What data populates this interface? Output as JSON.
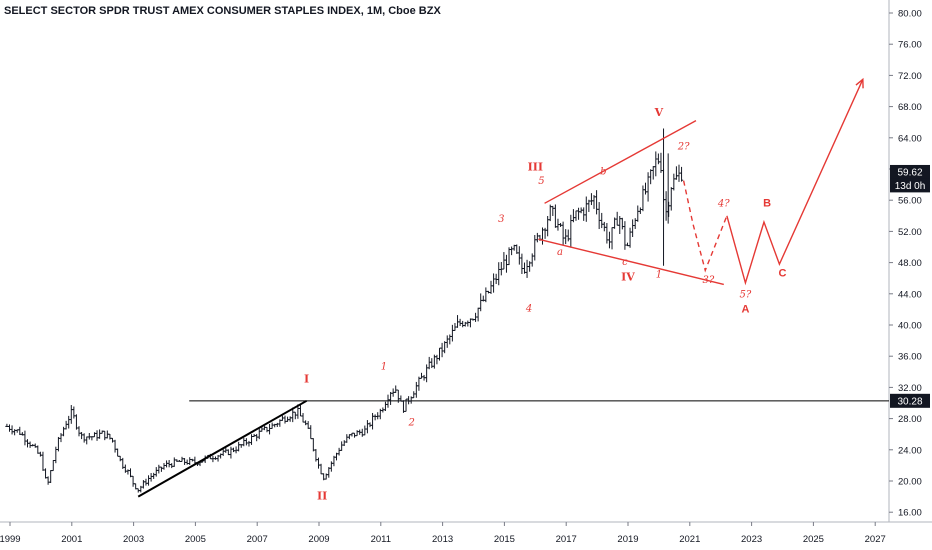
{
  "chart_data": {
    "type": "bar",
    "title": "SELECT SECTOR SPDR TRUST AMEX CONSUMER STAPLES INDEX, 1M, Cboe BZX",
    "x_ticks": [
      "1999",
      "2001",
      "2003",
      "2005",
      "2007",
      "2009",
      "2011",
      "2013",
      "2015",
      "2017",
      "2019",
      "2021",
      "2023",
      "2025",
      "2027"
    ],
    "y_ticks": [
      "80.00",
      "76.00",
      "72.00",
      "68.00",
      "64.00",
      "60.00",
      "56.00",
      "52.00",
      "48.00",
      "44.00",
      "40.00",
      "36.00",
      "32.00",
      "28.00",
      "24.00",
      "20.00",
      "16.00"
    ],
    "ylim": [
      14.5,
      81.5
    ],
    "price_tags": [
      {
        "text": "59.62",
        "value": 59.62
      },
      {
        "text": "13d 0h",
        "value": 57.9
      },
      {
        "text": "30.28",
        "value": 30.28
      }
    ],
    "horizontal_level": 30.28,
    "series": [
      {
        "values": [
          [
            1998.9,
            27.0
          ],
          [
            1999.3,
            26.3
          ],
          [
            1999.7,
            24.6
          ],
          [
            2000.0,
            23.0
          ],
          [
            2000.2,
            19.2
          ],
          [
            2000.5,
            24.4
          ],
          [
            2000.8,
            27.4
          ],
          [
            2001.0,
            28.8
          ],
          [
            2001.3,
            25.7
          ],
          [
            2001.7,
            25.7
          ],
          [
            2002.0,
            26.1
          ],
          [
            2002.3,
            25.3
          ],
          [
            2002.6,
            22.3
          ],
          [
            2002.8,
            21.3
          ],
          [
            2003.0,
            19.6
          ],
          [
            2003.15,
            18.9
          ],
          [
            2003.5,
            20.4
          ],
          [
            2004.0,
            22.0
          ],
          [
            2004.5,
            22.5
          ],
          [
            2005.0,
            22.4
          ],
          [
            2005.5,
            23.1
          ],
          [
            2006.0,
            23.6
          ],
          [
            2006.5,
            24.6
          ],
          [
            2007.0,
            26.0
          ],
          [
            2007.5,
            27.1
          ],
          [
            2008.0,
            28.4
          ],
          [
            2008.3,
            28.9
          ],
          [
            2008.6,
            27.0
          ],
          [
            2008.8,
            24.4
          ],
          [
            2009.0,
            21.8
          ],
          [
            2009.15,
            20.5
          ],
          [
            2009.4,
            22.3
          ],
          [
            2009.7,
            24.5
          ],
          [
            2010.0,
            25.8
          ],
          [
            2010.5,
            26.5
          ],
          [
            2010.8,
            28.3
          ],
          [
            2011.0,
            29.0
          ],
          [
            2011.3,
            31.5
          ],
          [
            2011.5,
            31.8
          ],
          [
            2011.7,
            29.2
          ],
          [
            2012.0,
            31.2
          ],
          [
            2012.5,
            34.3
          ],
          [
            2013.0,
            37.0
          ],
          [
            2013.5,
            40.1
          ],
          [
            2014.0,
            41.2
          ],
          [
            2014.5,
            44.3
          ],
          [
            2015.0,
            48.1
          ],
          [
            2015.3,
            49.6
          ],
          [
            2015.6,
            47.0
          ],
          [
            2015.9,
            49.5
          ],
          [
            2016.2,
            52.1
          ],
          [
            2016.5,
            54.6
          ],
          [
            2016.8,
            52.2
          ],
          [
            2016.95,
            50.6
          ],
          [
            2017.3,
            54.1
          ],
          [
            2017.6,
            54.9
          ],
          [
            2017.9,
            56.3
          ],
          [
            2018.15,
            53.1
          ],
          [
            2018.4,
            50.7
          ],
          [
            2018.7,
            54.3
          ],
          [
            2018.95,
            49.7
          ],
          [
            2019.3,
            54.9
          ],
          [
            2019.6,
            57.4
          ],
          [
            2019.9,
            60.9
          ],
          [
            2020.05,
            61.5
          ],
          [
            2020.2,
            53.8
          ],
          [
            2020.4,
            58.0
          ],
          [
            2020.6,
            59.0
          ],
          [
            2020.75,
            59.62
          ]
        ]
      }
    ],
    "trendlines": [
      {
        "from": [
          2003.15,
          18.0
        ],
        "to": [
          2008.6,
          30.28
        ],
        "color": "#000000"
      },
      {
        "from": [
          2016.3,
          55.6
        ],
        "to": [
          2021.2,
          66.2
        ],
        "color": "#e53935"
      },
      {
        "from": [
          2016.1,
          51.0
        ],
        "to": [
          2022.1,
          45.2
        ],
        "color": "#e53935"
      }
    ],
    "projection_dashed": [
      [
        2020.8,
        58.5
      ],
      [
        2021.1,
        53.0
      ],
      [
        2021.5,
        47.0
      ],
      [
        2022.2,
        54.0
      ]
    ],
    "projection_solid": [
      [
        2022.2,
        54.0
      ],
      [
        2022.8,
        45.4
      ],
      [
        2023.4,
        53.2
      ],
      [
        2023.9,
        47.8
      ],
      [
        2026.6,
        71.5
      ]
    ],
    "wave_labels_major": [
      {
        "text": "I",
        "x": 2008.6,
        "y": 32.6
      },
      {
        "text": "II",
        "x": 2009.1,
        "y": 17.6
      },
      {
        "text": "III",
        "x": 2016.0,
        "y": 59.8
      },
      {
        "text": "IV",
        "x": 2019.0,
        "y": 45.7
      },
      {
        "text": "V",
        "x": 2020.0,
        "y": 66.8
      }
    ],
    "wave_labels_minor": [
      {
        "text": "1",
        "x": 2011.1,
        "y": 34.3
      },
      {
        "text": "2",
        "x": 2012.0,
        "y": 27.1
      },
      {
        "text": "3",
        "x": 2014.9,
        "y": 53.2
      },
      {
        "text": "4",
        "x": 2015.8,
        "y": 41.7
      },
      {
        "text": "5",
        "x": 2016.2,
        "y": 58.1
      },
      {
        "text": "a",
        "x": 2016.8,
        "y": 49.0
      },
      {
        "text": "b",
        "x": 2018.2,
        "y": 59.3
      },
      {
        "text": "c",
        "x": 2018.9,
        "y": 47.7
      },
      {
        "text": "1",
        "x": 2020.0,
        "y": 46.1
      },
      {
        "text": "2?",
        "x": 2020.8,
        "y": 62.5
      },
      {
        "text": "3?",
        "x": 2021.6,
        "y": 45.4
      },
      {
        "text": "4?",
        "x": 2022.1,
        "y": 55.2
      },
      {
        "text": "5?",
        "x": 2022.8,
        "y": 43.5
      }
    ],
    "wave_labels_abc": [
      {
        "text": "A",
        "x": 2022.8,
        "y": 41.6
      },
      {
        "text": "B",
        "x": 2023.5,
        "y": 55.2
      },
      {
        "text": "C",
        "x": 2024.0,
        "y": 46.2
      }
    ]
  }
}
